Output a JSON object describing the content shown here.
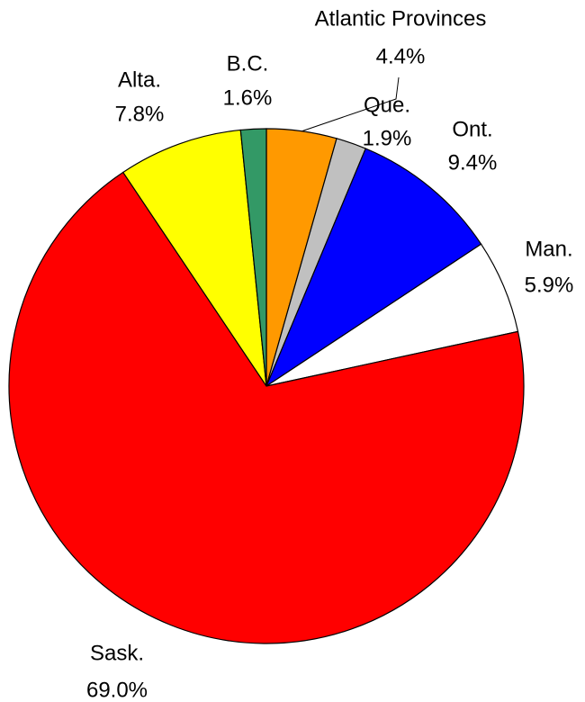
{
  "chart_data": {
    "type": "pie",
    "categories": [
      "Atlantic Provinces",
      "Que.",
      "Ont.",
      "Man.",
      "Sask.",
      "Alta.",
      "B.C."
    ],
    "values": [
      4.4,
      1.9,
      9.4,
      5.9,
      69.0,
      7.8,
      1.6
    ],
    "value_labels": [
      "4.4%",
      "1.9%",
      "9.4%",
      "5.9%",
      "69.0%",
      "7.8%",
      "1.6%"
    ],
    "colors": [
      "#ff9900",
      "#c0c0c0",
      "#0000ff",
      "#ffffff",
      "#ff0000",
      "#ffff00",
      "#339966"
    ]
  }
}
